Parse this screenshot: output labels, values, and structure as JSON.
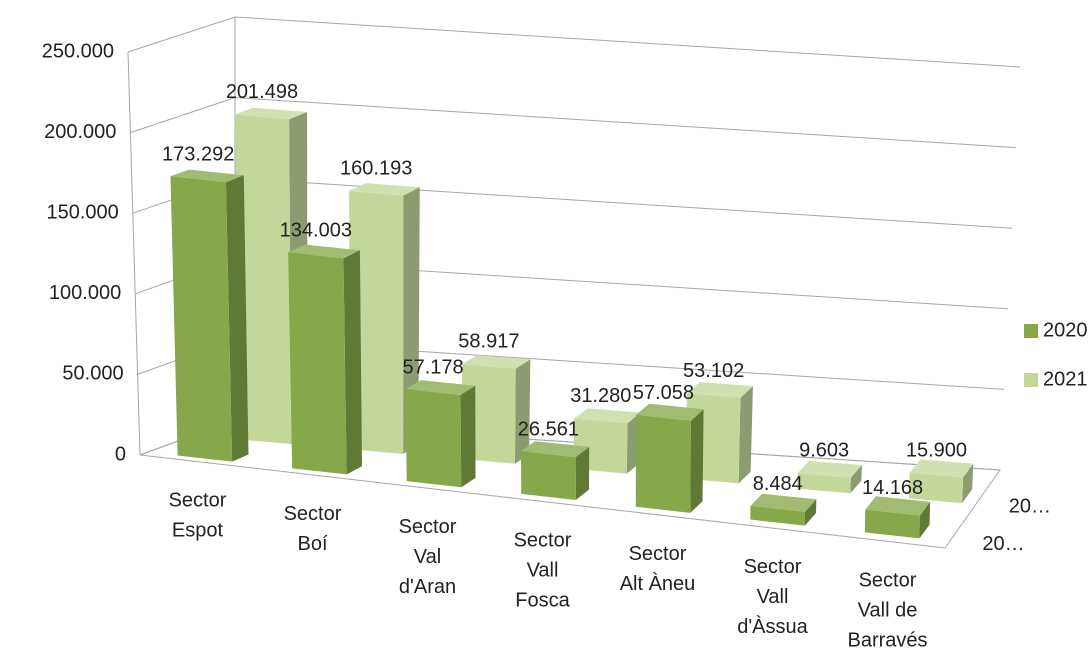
{
  "chart_data": {
    "type": "bar3d",
    "categories": [
      [
        "Sector",
        "Espot"
      ],
      [
        "Sector",
        "Boí"
      ],
      [
        "Sector",
        "Val",
        "d'Aran"
      ],
      [
        "Sector",
        "Vall",
        "Fosca"
      ],
      [
        "Sector",
        "Alt Àneu"
      ],
      [
        "Sector",
        "Vall",
        "d'Àssua"
      ],
      [
        "Sector",
        "Vall de",
        "Barravés"
      ]
    ],
    "series": [
      {
        "name": "2020",
        "color": "#86a84a",
        "values": [
          173292,
          134003,
          57178,
          26561,
          57058,
          8484,
          14168
        ],
        "value_labels": [
          "173.292",
          "134.003",
          "57.178",
          "26.561",
          "57.058",
          "8.484",
          "14.168"
        ]
      },
      {
        "name": "2021",
        "color": "#c4d79b",
        "values": [
          201498,
          160193,
          58917,
          31280,
          53102,
          9603,
          15900
        ],
        "value_labels": [
          "201.498",
          "160.193",
          "58.917",
          "31.280",
          "53.102",
          "9.603",
          "15.900"
        ]
      }
    ],
    "depth_labels": [
      "20…",
      "20…"
    ],
    "ylim": [
      0,
      250000
    ],
    "yticks": [
      0,
      {
        "value": 50000,
        "label": "50.000"
      },
      {
        "value": 100000,
        "label": "100.000"
      },
      {
        "value": 150000,
        "label": "150.000"
      },
      {
        "value": 200000,
        "label": "200.000"
      },
      {
        "value": 250000,
        "label": "250.000"
      }
    ],
    "grid": true,
    "legend": "right"
  }
}
